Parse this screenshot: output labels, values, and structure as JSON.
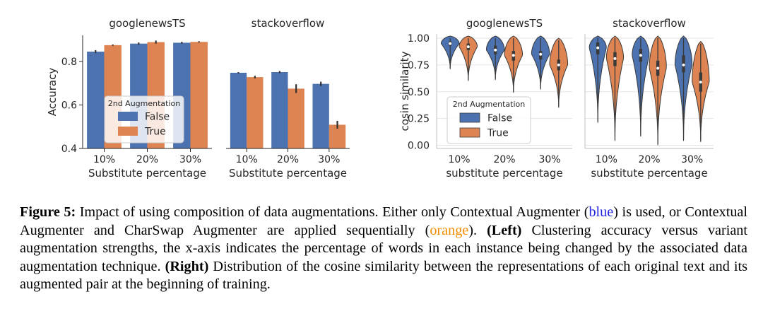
{
  "colors": {
    "false": "#4c72b0",
    "true": "#dd8452",
    "caption_blue": "#1f1fe0",
    "caption_orange": "#f28c00"
  },
  "chart_data": [
    {
      "type": "bar",
      "title": "googlenewsTS",
      "xlabel": "Substitute percentage",
      "ylabel": "Accuracy",
      "categories": [
        "10%",
        "20%",
        "30%"
      ],
      "yticks": [
        "0.4",
        "0.6",
        "0.8"
      ],
      "ylim": [
        0.4,
        0.92
      ],
      "series": [
        {
          "name": "False",
          "values": [
            0.845,
            0.882,
            0.886
          ],
          "err": [
            0.007,
            0.005,
            0.004
          ]
        },
        {
          "name": "True",
          "values": [
            0.875,
            0.889,
            0.89
          ],
          "err": [
            0.003,
            0.007,
            0.003
          ]
        }
      ],
      "legend": {
        "title": "2nd Augmentation",
        "entries": [
          "False",
          "True"
        ],
        "placement": "lower-right"
      }
    },
    {
      "type": "bar",
      "title": "stackoverflow",
      "xlabel": "Substitute percentage",
      "categories": [
        "10%",
        "20%",
        "30%"
      ],
      "ylim": [
        0.4,
        0.92
      ],
      "series": [
        {
          "name": "False",
          "values": [
            0.748,
            0.751,
            0.697
          ],
          "err": [
            0.003,
            0.005,
            0.01
          ]
        },
        {
          "name": "True",
          "values": [
            0.728,
            0.675,
            0.509
          ],
          "err": [
            0.006,
            0.02,
            0.018
          ]
        }
      ]
    },
    {
      "type": "violin",
      "title": "googlenewsTS",
      "xlabel": "substitute percentage",
      "ylabel": "cosin similarity",
      "categories": [
        "10%",
        "20%",
        "30%"
      ],
      "yticks": [
        "0.00",
        "0.25",
        "0.50",
        "0.75",
        "1.00"
      ],
      "ylim": [
        -0.03,
        1.04
      ],
      "series": [
        {
          "name": "False",
          "min": [
            0.72,
            0.62,
            0.53
          ],
          "max": [
            1.0,
            1.0,
            1.0
          ],
          "q1": [
            0.93,
            0.85,
            0.8
          ],
          "median": [
            0.95,
            0.89,
            0.85
          ],
          "q3": [
            0.97,
            0.93,
            0.88
          ]
        },
        {
          "name": "True",
          "min": [
            0.61,
            0.5,
            0.36
          ],
          "max": [
            1.0,
            1.0,
            0.98
          ],
          "q1": [
            0.89,
            0.79,
            0.7
          ],
          "median": [
            0.92,
            0.84,
            0.75
          ],
          "q3": [
            0.95,
            0.88,
            0.8
          ]
        }
      ],
      "legend": {
        "title": "2nd Augmentation",
        "entries": [
          "False",
          "True"
        ],
        "placement": "lower-left"
      }
    },
    {
      "type": "violin",
      "title": "stackoverflow",
      "xlabel": "substitute percentage",
      "categories": [
        "10%",
        "20%",
        "30%"
      ],
      "ylim": [
        -0.03,
        1.04
      ],
      "series": [
        {
          "name": "False",
          "min": [
            0.22,
            0.09,
            0.05
          ],
          "max": [
            1.0,
            1.0,
            1.0
          ],
          "q1": [
            0.85,
            0.78,
            0.68
          ],
          "median": [
            0.91,
            0.84,
            0.75
          ],
          "q3": [
            0.96,
            0.9,
            0.84
          ]
        },
        {
          "name": "True",
          "min": [
            0.05,
            0.01,
            0.04
          ],
          "max": [
            1.0,
            1.0,
            0.95
          ],
          "q1": [
            0.74,
            0.65,
            0.5
          ],
          "median": [
            0.81,
            0.72,
            0.59
          ],
          "q3": [
            0.87,
            0.79,
            0.68
          ]
        }
      ]
    }
  ],
  "caption": {
    "label": "Figure 5:",
    "part1": " Impact of using composition of data augmentations. Either only Contextual Augmenter (",
    "blue_word": "blue",
    "part2": ") is used, or Contextual Augmenter and CharSwap Augmenter are applied sequentially (",
    "orange_word": "orange",
    "part3": "). ",
    "left_label": "(Left)",
    "part4": " Clustering accuracy versus variant augmentation strengths, the x-axis indicates the percentage of words in each instance being changed by the associated data augmentation technique. ",
    "right_label": "(Right)",
    "part5": " Distribution of the cosine similarity between the representations of each original text and its augmented pair at the beginning of training."
  }
}
